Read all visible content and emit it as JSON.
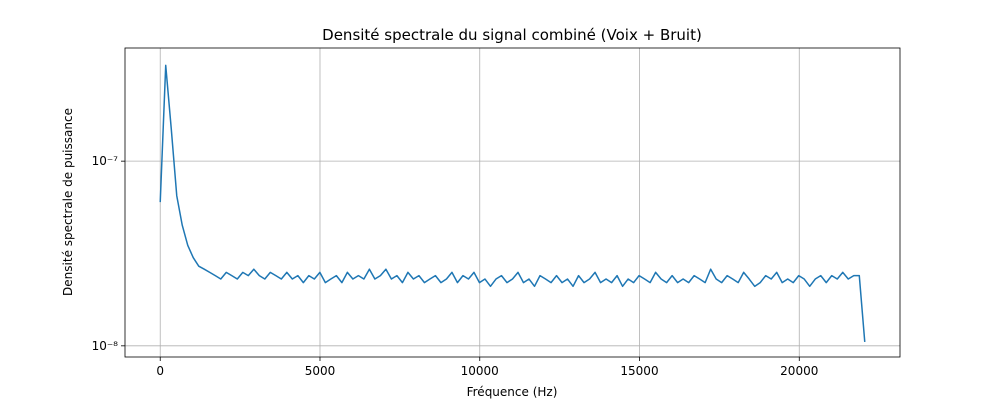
{
  "chart_data": {
    "type": "line",
    "title": "Densité spectrale du signal combiné (Voix + Bruit)",
    "xlabel": "Fréquence (Hz)",
    "ylabel": "Densité spectrale de puissance",
    "color": "#1f77b4",
    "grid": true,
    "yscale": "log",
    "xlim": [
      -1102.5,
      23152.5
    ],
    "ylim": [
      8.7e-09,
      4.1e-07
    ],
    "xticks": [
      0,
      5000,
      10000,
      15000,
      20000
    ],
    "yticks": [
      {
        "value": 1e-08,
        "label": "10⁻⁸"
      },
      {
        "value": 1e-07,
        "label": "10⁻⁷"
      }
    ],
    "x": [
      0,
      172,
      345,
      517,
      689,
      861,
      1034,
      1206,
      1378,
      1550,
      1723,
      1895,
      2067,
      2239,
      2412,
      2584,
      2756,
      2929,
      3101,
      3273,
      3445,
      3618,
      3790,
      3962,
      4134,
      4307,
      4479,
      4651,
      4823,
      4996,
      5168,
      5340,
      5513,
      5685,
      5857,
      6029,
      6202,
      6374,
      6546,
      6718,
      6891,
      7063,
      7235,
      7407,
      7580,
      7752,
      7924,
      8097,
      8269,
      8441,
      8613,
      8786,
      8958,
      9130,
      9302,
      9475,
      9647,
      9819,
      9991,
      10164,
      10336,
      10508,
      10680,
      10853,
      11025,
      11197,
      11369,
      11542,
      11714,
      11886,
      12059,
      12231,
      12403,
      12575,
      12748,
      12920,
      13092,
      13264,
      13437,
      13609,
      13781,
      13953,
      14126,
      14298,
      14470,
      14643,
      14815,
      14987,
      15159,
      15332,
      15504,
      15676,
      15848,
      16021,
      16193,
      16365,
      16538,
      16710,
      16882,
      17054,
      17227,
      17399,
      17571,
      17743,
      17916,
      18088,
      18260,
      18432,
      18605,
      18777,
      18949,
      19122,
      19294,
      19466,
      19638,
      19811,
      19983,
      20155,
      20327,
      20500,
      20672,
      20844,
      21016,
      21189,
      21361,
      21533,
      21706,
      21878,
      22050
    ],
    "values": [
      6e-08,
      3.3e-07,
      1.5e-07,
      6.5e-08,
      4.5e-08,
      3.5e-08,
      3e-08,
      2.7e-08,
      2.6e-08,
      2.5e-08,
      2.4e-08,
      2.3e-08,
      2.5e-08,
      2.4e-08,
      2.3e-08,
      2.5e-08,
      2.4e-08,
      2.6e-08,
      2.4e-08,
      2.3e-08,
      2.5e-08,
      2.4e-08,
      2.3e-08,
      2.5e-08,
      2.3e-08,
      2.4e-08,
      2.2e-08,
      2.4e-08,
      2.3e-08,
      2.5e-08,
      2.2e-08,
      2.3e-08,
      2.4e-08,
      2.2e-08,
      2.5e-08,
      2.3e-08,
      2.4e-08,
      2.3e-08,
      2.6e-08,
      2.3e-08,
      2.4e-08,
      2.6e-08,
      2.3e-08,
      2.4e-08,
      2.2e-08,
      2.5e-08,
      2.3e-08,
      2.4e-08,
      2.2e-08,
      2.3e-08,
      2.4e-08,
      2.2e-08,
      2.3e-08,
      2.5e-08,
      2.2e-08,
      2.4e-08,
      2.3e-08,
      2.5e-08,
      2.2e-08,
      2.3e-08,
      2.1e-08,
      2.3e-08,
      2.4e-08,
      2.2e-08,
      2.3e-08,
      2.5e-08,
      2.2e-08,
      2.3e-08,
      2.1e-08,
      2.4e-08,
      2.3e-08,
      2.2e-08,
      2.4e-08,
      2.2e-08,
      2.3e-08,
      2.1e-08,
      2.4e-08,
      2.2e-08,
      2.3e-08,
      2.5e-08,
      2.2e-08,
      2.3e-08,
      2.2e-08,
      2.4e-08,
      2.1e-08,
      2.3e-08,
      2.2e-08,
      2.4e-08,
      2.3e-08,
      2.2e-08,
      2.5e-08,
      2.3e-08,
      2.2e-08,
      2.4e-08,
      2.2e-08,
      2.3e-08,
      2.2e-08,
      2.4e-08,
      2.3e-08,
      2.2e-08,
      2.6e-08,
      2.3e-08,
      2.2e-08,
      2.4e-08,
      2.3e-08,
      2.2e-08,
      2.5e-08,
      2.3e-08,
      2.1e-08,
      2.2e-08,
      2.4e-08,
      2.3e-08,
      2.5e-08,
      2.2e-08,
      2.3e-08,
      2.2e-08,
      2.4e-08,
      2.3e-08,
      2.1e-08,
      2.3e-08,
      2.4e-08,
      2.2e-08,
      2.4e-08,
      2.3e-08,
      2.5e-08,
      2.3e-08,
      2.4e-08,
      2.4e-08,
      1.05e-08
    ]
  }
}
